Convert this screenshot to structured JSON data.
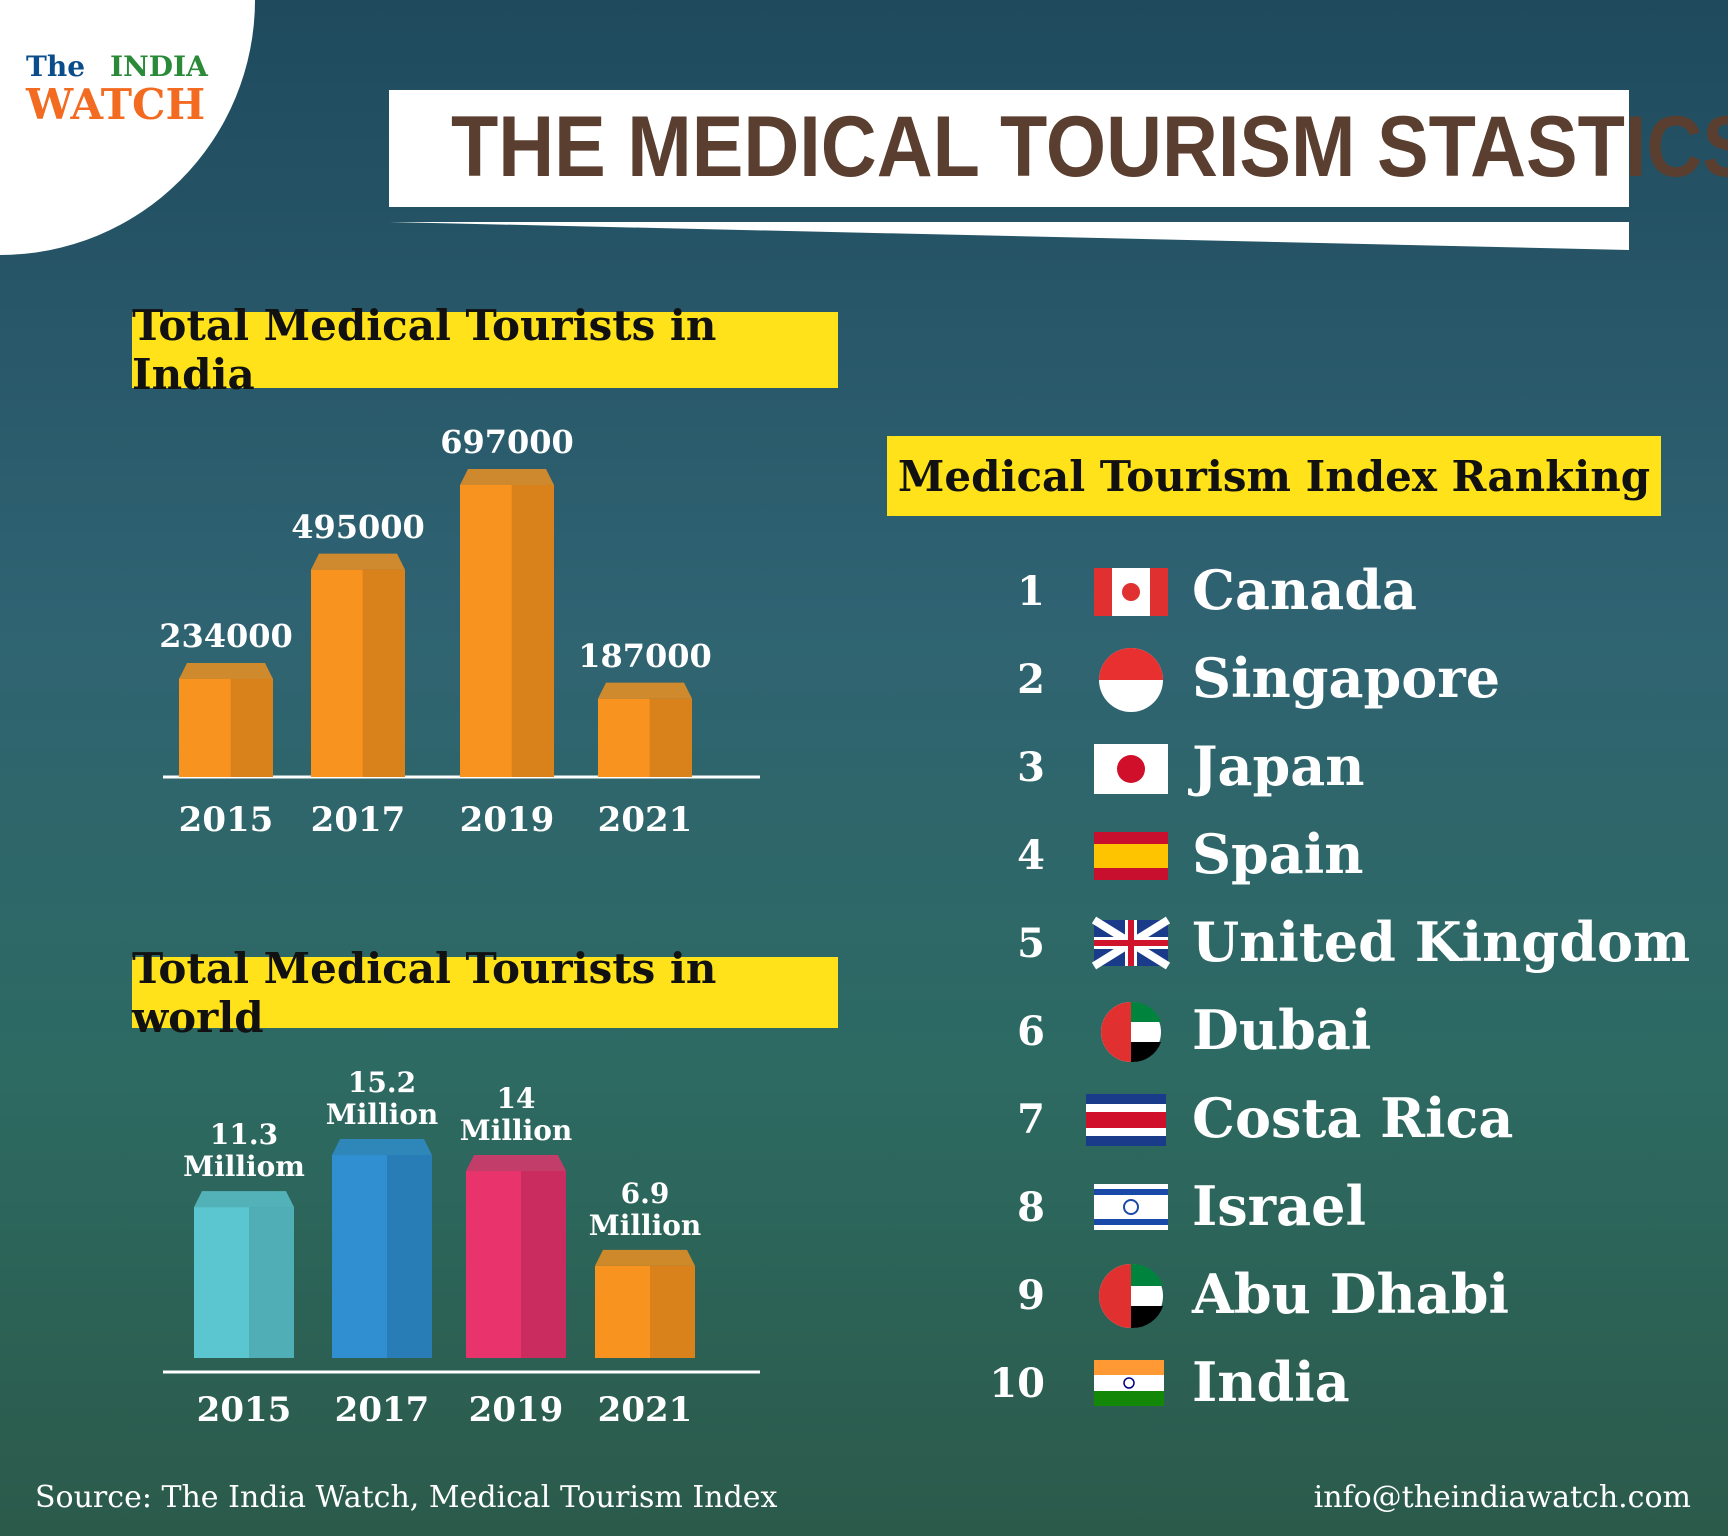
{
  "logo": {
    "line1": "The",
    "line2": "INDIA",
    "line3": "WATCH"
  },
  "title": "THE MEDICAL TOURISM STASTICS",
  "chart_data": [
    {
      "type": "bar",
      "title": "Total Medical Tourists in India",
      "categories": [
        "2015",
        "2017",
        "2019",
        "2021"
      ],
      "values": [
        234000,
        495000,
        697000,
        187000
      ],
      "color": "#f7931e"
    },
    {
      "type": "bar",
      "title": "Total Medical Tourists in world",
      "categories": [
        "2015",
        "2017",
        "2019",
        "2021"
      ],
      "values": [
        11.3,
        15.2,
        14,
        6.9
      ],
      "value_labels": [
        "11.3 Milliom",
        "15.2 Million",
        "14 Million",
        "6.9 Million"
      ],
      "colors": [
        "#5cc6d0",
        "#2f8fd0",
        "#e8336d",
        "#f7931e"
      ]
    }
  ],
  "ranking": {
    "title": "Medical Tourism Index Ranking",
    "items": [
      {
        "rank": "1",
        "country": "Canada"
      },
      {
        "rank": "2",
        "country": "Singapore"
      },
      {
        "rank": "3",
        "country": "Japan"
      },
      {
        "rank": "4",
        "country": "Spain"
      },
      {
        "rank": "5",
        "country": "United Kingdom"
      },
      {
        "rank": "6",
        "country": "Dubai"
      },
      {
        "rank": "7",
        "country": "Costa Rica"
      },
      {
        "rank": "8",
        "country": "Israel"
      },
      {
        "rank": "9",
        "country": "Abu Dhabi"
      },
      {
        "rank": "10",
        "country": "India"
      }
    ]
  },
  "source": "Source: The India Watch, Medical Tourism Index",
  "email": "info@theindiawatch.com"
}
